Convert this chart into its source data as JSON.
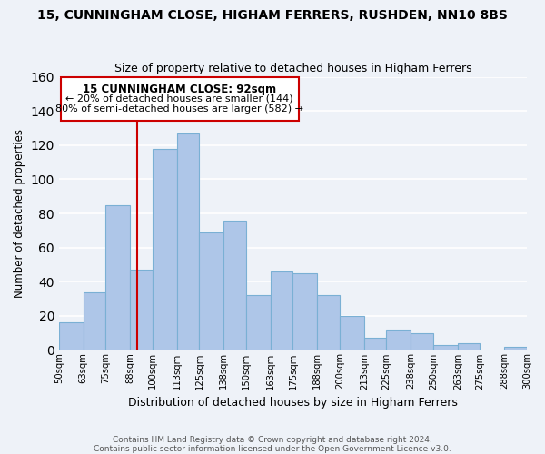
{
  "title": "15, CUNNINGHAM CLOSE, HIGHAM FERRERS, RUSHDEN, NN10 8BS",
  "subtitle": "Size of property relative to detached houses in Higham Ferrers",
  "xlabel": "Distribution of detached houses by size in Higham Ferrers",
  "ylabel": "Number of detached properties",
  "footnote1": "Contains HM Land Registry data © Crown copyright and database right 2024.",
  "footnote2": "Contains public sector information licensed under the Open Government Licence v3.0.",
  "bar_edges": [
    50,
    63,
    75,
    88,
    100,
    113,
    125,
    138,
    150,
    163,
    175,
    188,
    200,
    213,
    225,
    238,
    250,
    263,
    275,
    288,
    300
  ],
  "bar_heights": [
    16,
    34,
    85,
    47,
    118,
    127,
    69,
    76,
    32,
    46,
    45,
    32,
    20,
    7,
    12,
    10,
    3,
    4,
    0,
    2
  ],
  "bar_color": "#aec6e8",
  "bar_edgecolor": "#7ab0d4",
  "property_line_x": 92,
  "property_line_color": "#cc0000",
  "ylim": [
    0,
    160
  ],
  "yticks": [
    0,
    20,
    40,
    60,
    80,
    100,
    120,
    140,
    160
  ],
  "tick_labels": [
    "50sqm",
    "63sqm",
    "75sqm",
    "88sqm",
    "100sqm",
    "113sqm",
    "125sqm",
    "138sqm",
    "150sqm",
    "163sqm",
    "175sqm",
    "188sqm",
    "200sqm",
    "213sqm",
    "225sqm",
    "238sqm",
    "250sqm",
    "263sqm",
    "275sqm",
    "288sqm",
    "300sqm"
  ],
  "annotation_title": "15 CUNNINGHAM CLOSE: 92sqm",
  "annotation_line1": "← 20% of detached houses are smaller (144)",
  "annotation_line2": "80% of semi-detached houses are larger (582) →",
  "background_color": "#eef2f8"
}
